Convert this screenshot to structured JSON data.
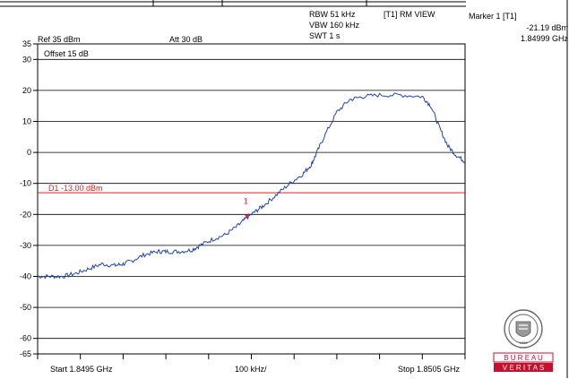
{
  "header": {
    "ref_label": "Ref 35 dBm",
    "att_label": "Att 30 dB",
    "offset_label": "Offset 15 dB",
    "rbw": "RBW 51 kHz",
    "vbw": "VBW 160 kHz",
    "swt": "SWT 1 s",
    "trace_mode": "[T1] RM VIEW",
    "marker_title": "Marker 1 [T1]",
    "marker_level": "-21.19 dBm",
    "marker_freq": "1.84999 GHz"
  },
  "footer": {
    "start": "Start 1.8495 GHz",
    "per_div": "100 kHz/",
    "stop": "Stop 1.8505 GHz"
  },
  "logo": {
    "lines": [
      "B U R E A U",
      "V E R I T A S"
    ],
    "seal_text": "1828",
    "color": "#c8102e"
  },
  "chart_data": {
    "type": "line",
    "xlabel": "",
    "ylabel": "",
    "x_unit": "GHz",
    "y_unit": "dBm",
    "xlim": [
      1.8495,
      1.8505
    ],
    "ylim": [
      -65,
      35
    ],
    "y_ticks": [
      35,
      30,
      20,
      10,
      0,
      -10,
      -20,
      -30,
      -40,
      -50,
      -60,
      -65
    ],
    "x_divisions": 10,
    "grid": true,
    "display_line": {
      "label": "D1 -13.00 dBm",
      "value": -13.0,
      "color": "#e02020"
    },
    "marker": {
      "label": "1",
      "x": 1.84999,
      "y": -21.19,
      "color": "#e02020"
    },
    "series": [
      {
        "color": "#2244aa",
        "x": [
          1.8495,
          1.84953,
          1.84956,
          1.84959,
          1.84962,
          1.84965,
          1.84968,
          1.8497,
          1.84972,
          1.84975,
          1.84978,
          1.8498,
          1.84983,
          1.84986,
          1.84988,
          1.84991,
          1.84994,
          1.84997,
          1.84999,
          1.85001,
          1.85003,
          1.85006,
          1.85009,
          1.85012,
          1.85014,
          1.85015,
          1.85017,
          1.8502,
          1.85023,
          1.85026,
          1.8503,
          1.85035,
          1.8504,
          1.85042,
          1.85044,
          1.85046,
          1.85048,
          1.8505
        ],
        "y": [
          -40,
          -40,
          -40,
          -39,
          -37.5,
          -36,
          -36.5,
          -36,
          -35,
          -33,
          -32,
          -32,
          -32,
          -31.5,
          -30,
          -28,
          -26.5,
          -23.5,
          -21,
          -19,
          -17,
          -13.5,
          -10,
          -7,
          -4,
          -1,
          5,
          13,
          17,
          18,
          18.5,
          18.5,
          18,
          15,
          8,
          2,
          -1,
          -3
        ]
      }
    ]
  }
}
